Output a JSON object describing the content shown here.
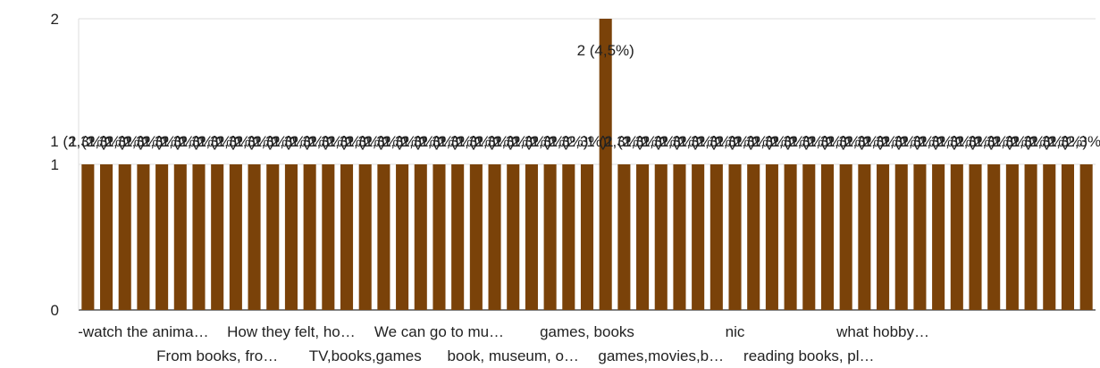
{
  "chart_data": {
    "type": "bar",
    "ylim": [
      0,
      2
    ],
    "yticks": [
      0,
      1,
      2
    ],
    "bar_color": "#7a4209",
    "grid": true,
    "values": [
      1,
      1,
      1,
      1,
      1,
      1,
      1,
      1,
      1,
      1,
      1,
      1,
      1,
      1,
      1,
      1,
      1,
      1,
      1,
      1,
      1,
      1,
      1,
      1,
      1,
      1,
      1,
      1,
      2,
      1,
      1,
      1,
      1,
      1,
      1,
      1,
      1,
      1,
      1,
      1,
      1,
      1,
      1,
      1,
      1,
      1,
      1,
      1,
      1,
      1,
      1,
      1,
      1,
      1,
      1
    ],
    "data_labels": [
      "1 (2,3%)",
      "1 (2,3%)",
      "1 (2,3%)",
      "1 (2,3%)",
      "1 (2,3%)",
      "1 (2,3%)",
      "1 (2,3%)",
      "1 (2,3%)",
      "1 (2,3%)",
      "1 (2,3%)",
      "1 (2,3%)",
      "1 (2,3%)",
      "1 (2,3%)",
      "1 (2,3%)",
      "1 (2,3%)",
      "1 (2,3%)",
      "1 (2,3%)",
      "1 (2,3%)",
      "1 (2,3%)",
      "1 (2,3%)",
      "1 (2,3%)",
      "1 (2,3%)",
      "1 (2,3%)",
      "1 (2,3%)",
      "1 (2,3%)",
      "1 (2,3%)",
      "1 (2,3%)",
      "1 (2,3%)",
      "2 (4,5%)",
      "1 (2,3%)",
      "1 (2,3%)",
      "1 (2,3%)",
      "1 (2,3%)",
      "1 (2,3%)",
      "1 (2,3%)",
      "1 (2,3%)",
      "1 (2,3%)",
      "1 (2,3%)",
      "1 (2,3%)",
      "1 (2,3%)",
      "1 (2,3%)",
      "1 (2,3%)",
      "1 (2,3%)",
      "1 (2,3%)",
      "1 (2,3%)",
      "1 (2,3%)",
      "1 (2,3%)",
      "1 (2,3%)",
      "1 (2,3%)",
      "1 (2,3%)",
      "1 (2,3%)",
      "1 (2,3%)",
      "1 (2,3%)",
      "1 (2,3%)",
      "1 (2,3%)"
    ],
    "x_labels_row1": [
      {
        "index": 3,
        "text": "-watch the anima…"
      },
      {
        "index": 11,
        "text": "How they felt, ho…"
      },
      {
        "index": 19,
        "text": "We can go to mu…"
      },
      {
        "index": 27,
        "text": "games, books"
      },
      {
        "index": 35,
        "text": "nic"
      },
      {
        "index": 43,
        "text": "what hobby…"
      }
    ],
    "x_labels_row2": [
      {
        "index": 7,
        "text": "From books, fro…"
      },
      {
        "index": 15,
        "text": "TV,books,games"
      },
      {
        "index": 23,
        "text": "book, museum, o…"
      },
      {
        "index": 31,
        "text": "games,movies,b…"
      },
      {
        "index": 39,
        "text": "reading books, pl…"
      }
    ]
  }
}
